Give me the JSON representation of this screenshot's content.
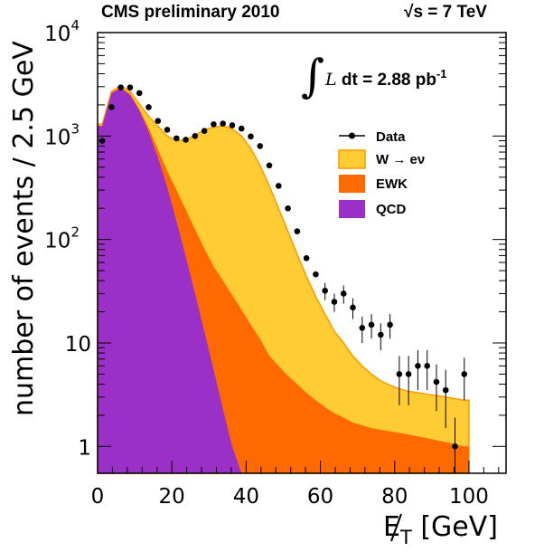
{
  "header": {
    "left": "CMS preliminary 2010",
    "energy_sym": "s",
    "energy_rest": " = 7 TeV",
    "sqrt_glyph": "√"
  },
  "annotation": {
    "integral_glyph": "∫",
    "L": "L",
    "text": " dt = 2.88 pb",
    "sup": "-1"
  },
  "colors": {
    "qcd": "#9b30c8",
    "ewk": "#ff6a00",
    "w": "#ffcc33",
    "w_line": "#ff9900",
    "data": "#000000"
  },
  "chart_data": {
    "type": "area",
    "stacked": true,
    "log_y": true,
    "xlabel": "E",
    "xlabel_sub": "T",
    "xlabel_unit": " [GeV]",
    "ylabel": "number of events / 2.5 GeV",
    "xlim": [
      0,
      110
    ],
    "ylim": [
      0.55,
      10000
    ],
    "x_ticks": [
      "0",
      "20",
      "40",
      "60",
      "80",
      "100"
    ],
    "y_ticks": [
      {
        "base": "10",
        "exp": "4",
        "value": 10000
      },
      {
        "base": "10",
        "exp": "3",
        "value": 1000
      },
      {
        "base": "10",
        "exp": "2",
        "value": 100
      },
      {
        "base": "10",
        "exp": "",
        "value": 10
      },
      {
        "base": "1",
        "exp": "",
        "value": 1
      }
    ],
    "legend": [
      "Data",
      "W → eν",
      "EWK",
      "QCD"
    ],
    "legend_position": "top-right",
    "bin_edges": [
      0,
      2.5,
      5,
      7.5,
      10,
      12.5,
      15,
      17.5,
      20,
      22.5,
      25,
      27.5,
      30,
      32.5,
      35,
      37.5,
      40,
      42.5,
      45,
      47.5,
      50,
      52.5,
      55,
      57.5,
      60,
      62.5,
      65,
      67.5,
      70,
      72.5,
      75,
      77.5,
      80,
      82.5,
      85,
      87.5,
      90,
      92.5,
      95,
      97.5,
      100
    ],
    "series": [
      {
        "name": "QCD",
        "values": [
          1250,
          2600,
          2900,
          2500,
          1750,
          1100,
          620,
          320,
          150,
          68,
          30,
          13,
          5.5,
          2.3,
          1,
          0.55,
          0.55,
          0.55,
          0.55,
          0.55,
          0.55,
          0.55,
          0.55,
          0.55,
          0.55,
          0.55,
          0.55,
          0.55,
          0.55,
          0.55,
          0.55,
          0.55,
          0.55,
          0.55,
          0.55,
          0.55,
          0.55,
          0.55,
          0.55,
          0.55
        ]
      },
      {
        "name": "EWK",
        "values": [
          1260,
          2630,
          2950,
          2560,
          1830,
          1200,
          740,
          460,
          300,
          195,
          125,
          82,
          55,
          40,
          29,
          21,
          15,
          11,
          7.5,
          6,
          4.8,
          4,
          3.3,
          2.8,
          2.4,
          2.1,
          1.9,
          1.7,
          1.6,
          1.5,
          1.45,
          1.4,
          1.35,
          1.3,
          1.25,
          1.2,
          1.15,
          1.1,
          1.05,
          1.0
        ]
      },
      {
        "name": "W → eν",
        "values": [
          1300,
          2700,
          3050,
          2700,
          2050,
          1550,
          1250,
          1000,
          900,
          920,
          1020,
          1150,
          1220,
          1260,
          1180,
          1000,
          760,
          520,
          330,
          200,
          120,
          72,
          44,
          28,
          19,
          13,
          10,
          7.5,
          6,
          5,
          4.3,
          3.9,
          3.6,
          3.4,
          3.3,
          3.2,
          3.1,
          3.0,
          2.9,
          2.8
        ]
      },
      {
        "name": "Data",
        "x": [
          1.25,
          3.75,
          6.25,
          8.75,
          11.25,
          13.75,
          16.25,
          18.75,
          21.25,
          23.75,
          26.25,
          28.75,
          31.25,
          33.75,
          36.25,
          38.75,
          41.25,
          43.75,
          46.25,
          48.75,
          51.25,
          53.75,
          56.25,
          58.75,
          61.25,
          63.75,
          66.25,
          68.75,
          71.25,
          73.75,
          76.25,
          78.75,
          81.25,
          83.75,
          86.25,
          88.75,
          91.25,
          93.75,
          96.25,
          98.75
        ],
        "values": [
          900,
          1900,
          2950,
          2950,
          2600,
          1900,
          1400,
          1150,
          950,
          920,
          1000,
          1120,
          1300,
          1320,
          1270,
          1180,
          990,
          800,
          520,
          330,
          200,
          120,
          66,
          46,
          32,
          25,
          30,
          22,
          14,
          15,
          12,
          15,
          5,
          5,
          6,
          6,
          4.2,
          3.5,
          1,
          5
        ],
        "yerr": [
          0,
          0,
          0,
          0,
          0,
          0,
          0,
          0,
          0,
          0,
          0,
          0,
          0,
          0,
          0,
          0,
          0,
          0,
          0,
          0,
          0,
          0,
          0,
          0,
          6,
          5,
          6,
          5,
          4,
          4,
          3.5,
          4,
          2.5,
          2.5,
          2.5,
          2.5,
          2,
          2,
          0.9,
          2.2
        ]
      }
    ]
  }
}
